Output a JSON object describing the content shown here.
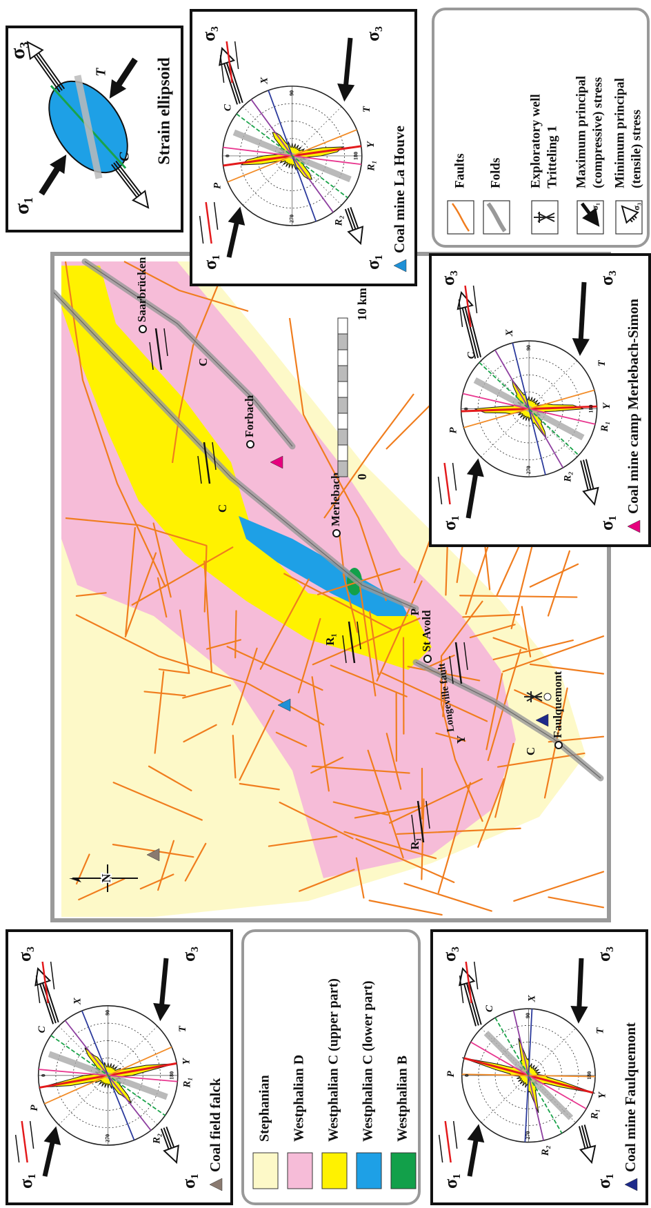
{
  "strain_ellipsoid": {
    "title": "Strain ellipsoid",
    "sigma1": "σ₁",
    "sigma3": "σ₃",
    "T": "T",
    "C": "C"
  },
  "rose_labels": {
    "sigma1": "σ₁",
    "sigma3": "σ₃",
    "P": "P",
    "Y": "Y",
    "R1": "R₁",
    "R2": "R₂",
    "X": "X",
    "C": "C",
    "T": "T",
    "azimuths": [
      "0",
      "90",
      "180",
      "270"
    ]
  },
  "panels": [
    {
      "title": "Coal field falck",
      "marker_color": "#8a7a70"
    },
    {
      "title": "Coal mine Faulquemont",
      "marker_color": "#1d2a8a"
    },
    {
      "title": "Coal mine camp Merlebach-Simon",
      "marker_color": "#e6007e"
    },
    {
      "title": "Coal mine La Houve",
      "marker_color": "#1e90d6"
    }
  ],
  "units_legend": {
    "items": [
      {
        "label": "Stephanian",
        "color": "#fdf9c8"
      },
      {
        "label": "Westphalian D",
        "color": "#f6bcd8"
      },
      {
        "label": "Westphalian C (upper part)",
        "color": "#fff200"
      },
      {
        "label": "Westphalian C (lower part)",
        "color": "#1ea0e6"
      },
      {
        "label": "Westphalian B",
        "color": "#12a04a"
      }
    ]
  },
  "symbols_legend": {
    "items": [
      {
        "lines": [
          "Faults"
        ]
      },
      {
        "lines": [
          "Folds"
        ]
      },
      {
        "lines": [
          "Exploratory well",
          "Tritteling 1"
        ]
      },
      {
        "lines": [
          "Maximum principal",
          "(compressive) stress"
        ]
      },
      {
        "lines": [
          "Minimum principal",
          "(tensile)  stress"
        ]
      }
    ],
    "sigma1": "σ₁",
    "sigma3": "σ₃"
  },
  "map": {
    "north": "N",
    "scale": {
      "start": "0",
      "end": "10 km"
    },
    "towns": [
      "Saarbrücken",
      "Forbach",
      "Merlebach",
      "St Avold",
      "Faulquemont"
    ],
    "fault_name": "Longeville fault",
    "structure_labels": [
      "C",
      "C",
      "C",
      "R₁",
      "R₁",
      "Y",
      "P"
    ]
  }
}
